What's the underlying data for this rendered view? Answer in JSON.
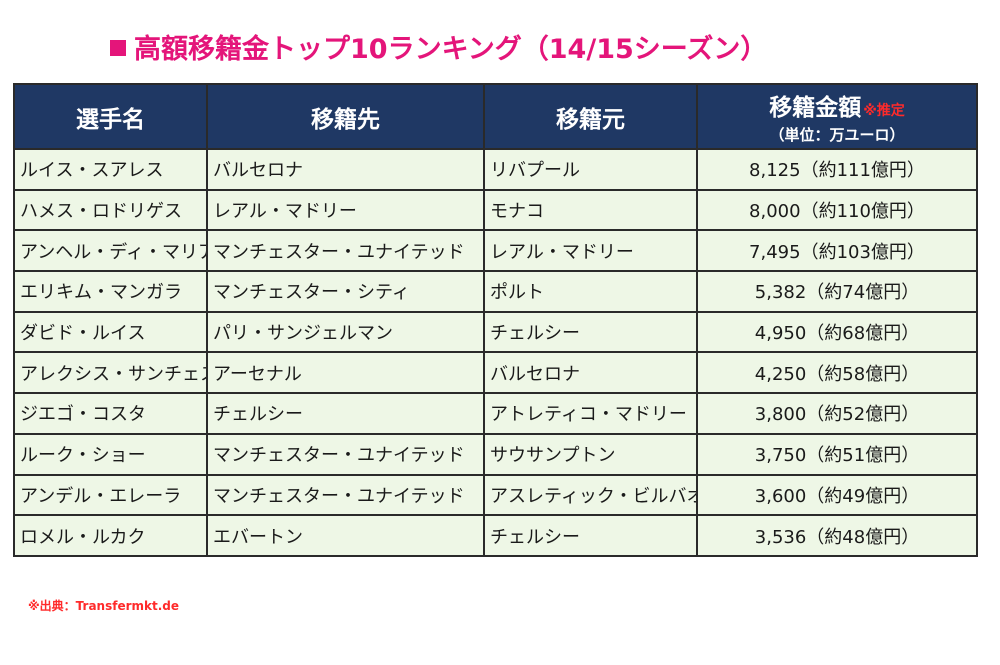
{
  "title": "高額移籍金トップ10ランキング（14/15シーズン）",
  "headers": {
    "player": "選手名",
    "to": "移籍先",
    "from": "移籍元",
    "fee": "移籍金額",
    "fee_note": "※推定",
    "fee_unit": "（単位：万ユーロ）"
  },
  "rows": [
    {
      "player": "ルイス・スアレス",
      "to": "バルセロナ",
      "from": "リバプール",
      "fee": "8,125（約111億円）"
    },
    {
      "player": "ハメス・ロドリゲス",
      "to": "レアル・マドリー",
      "from": "モナコ",
      "fee": "8,000（約110億円）"
    },
    {
      "player": "アンヘル・ディ・マリア",
      "to": "マンチェスター・ユナイテッド",
      "from": "レアル・マドリー",
      "fee": "7,495（約103億円）"
    },
    {
      "player": "エリキム・マンガラ",
      "to": "マンチェスター・シティ",
      "from": "ポルト",
      "fee": "5,382（約74億円）"
    },
    {
      "player": "ダビド・ルイス",
      "to": "パリ・サンジェルマン",
      "from": "チェルシー",
      "fee": "4,950（約68億円）"
    },
    {
      "player": "アレクシス・サンチェス",
      "to": "アーセナル",
      "from": "バルセロナ",
      "fee": "4,250（約58億円）"
    },
    {
      "player": "ジエゴ・コスタ",
      "to": "チェルシー",
      "from": "アトレティコ・マドリー",
      "fee": "3,800（約52億円）"
    },
    {
      "player": "ルーク・ショー",
      "to": "マンチェスター・ユナイテッド",
      "from": "サウサンプトン",
      "fee": "3,750（約51億円）"
    },
    {
      "player": "アンデル・エレーラ",
      "to": "マンチェスター・ユナイテッド",
      "from": "アスレティック・ビルバオ",
      "fee": "3,600（約49億円）"
    },
    {
      "player": "ロメル・ルカク",
      "to": "エバートン",
      "from": "チェルシー",
      "fee": "3,536（約48億円）"
    }
  ],
  "source": "※出典：Transfermkt.de",
  "colors": {
    "title": "#e4157a",
    "header_bg": "#1f3864",
    "row_bg": "#eef7e6",
    "note": "#ff2a2a"
  }
}
